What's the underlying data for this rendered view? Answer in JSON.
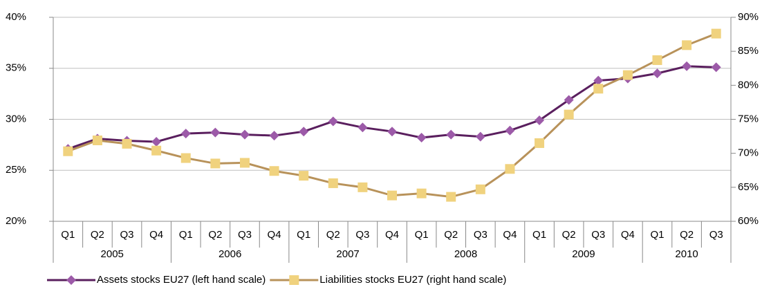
{
  "chart_data": {
    "type": "line",
    "category_groups": [
      {
        "label": "2005",
        "categories": [
          "Q1",
          "Q2",
          "Q3",
          "Q4"
        ]
      },
      {
        "label": "2006",
        "categories": [
          "Q1",
          "Q2",
          "Q3",
          "Q4"
        ]
      },
      {
        "label": "2007",
        "categories": [
          "Q1",
          "Q2",
          "Q3",
          "Q4"
        ]
      },
      {
        "label": "2008",
        "categories": [
          "Q1",
          "Q2",
          "Q3",
          "Q4"
        ]
      },
      {
        "label": "2009",
        "categories": [
          "Q1",
          "Q2",
          "Q3",
          "Q4"
        ]
      },
      {
        "label": "2010",
        "categories": [
          "Q1",
          "Q2",
          "Q3"
        ]
      }
    ],
    "series": [
      {
        "name": "Assets stocks EU27 (left hand scale)",
        "color": "#5a1f5e",
        "marker_color": "#9c5aa8",
        "marker": "diamond",
        "axis": "y",
        "values": [
          27.1,
          28.1,
          27.9,
          27.8,
          28.6,
          28.7,
          28.5,
          28.4,
          28.8,
          29.8,
          29.2,
          28.8,
          28.2,
          28.5,
          28.3,
          28.9,
          29.9,
          31.9,
          33.8,
          34.0,
          34.5,
          35.2,
          35.1
        ]
      },
      {
        "name": "Liabilities stocks EU27 (right hand scale)",
        "color": "#b8925a",
        "marker_color": "#f0d27e",
        "marker": "square",
        "axis": "y2",
        "values": [
          70.3,
          71.9,
          71.4,
          70.4,
          69.3,
          68.5,
          68.6,
          67.4,
          66.7,
          65.6,
          65.0,
          63.8,
          64.1,
          63.6,
          64.7,
          67.7,
          71.5,
          75.7,
          79.5,
          81.5,
          83.7,
          85.9,
          87.6
        ]
      }
    ],
    "ylim": [
      20,
      40
    ],
    "yticks": [
      {
        "value": 20,
        "label": "20%"
      },
      {
        "value": 25,
        "label": "25%"
      },
      {
        "value": 30,
        "label": "30%"
      },
      {
        "value": 35,
        "label": "35%"
      },
      {
        "value": 40,
        "label": "40%"
      }
    ],
    "y2lim": [
      60,
      90
    ],
    "y2ticks": [
      {
        "value": 60,
        "label": "60%"
      },
      {
        "value": 65,
        "label": "65%"
      },
      {
        "value": 70,
        "label": "70%"
      },
      {
        "value": 75,
        "label": "75%"
      },
      {
        "value": 80,
        "label": "80%"
      },
      {
        "value": 85,
        "label": "85%"
      },
      {
        "value": 90,
        "label": "90%"
      }
    ],
    "grid": true,
    "legend": "bottom"
  }
}
